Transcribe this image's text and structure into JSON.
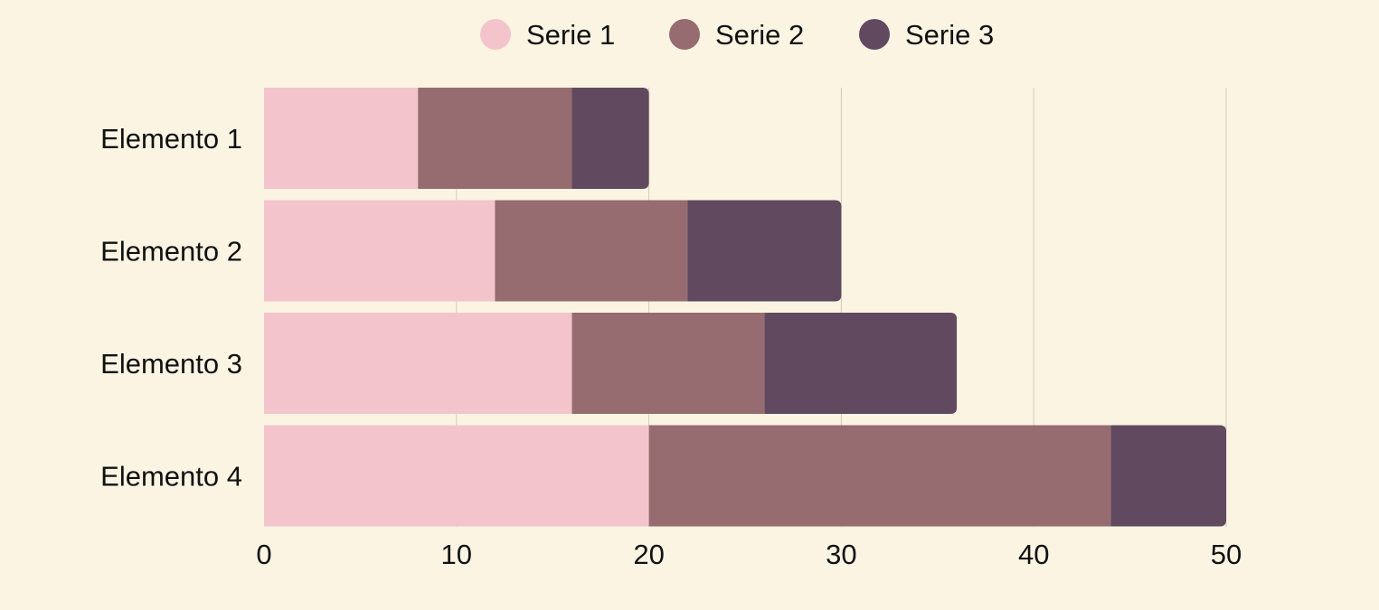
{
  "chart_data": {
    "type": "bar",
    "orientation": "horizontal",
    "stacked": true,
    "title": "",
    "xlabel": "",
    "ylabel": "",
    "categories": [
      "Elemento 1",
      "Elemento 2",
      "Elemento 3",
      "Elemento 4"
    ],
    "series": [
      {
        "name": "Serie 1",
        "color": "#f4c4cd",
        "values": [
          8,
          12,
          16,
          20
        ]
      },
      {
        "name": "Serie 2",
        "color": "#976c70",
        "values": [
          8,
          10,
          10,
          24
        ]
      },
      {
        "name": "Serie 3",
        "color": "#614a60",
        "values": [
          4,
          8,
          10,
          6
        ]
      }
    ],
    "xlim": [
      0,
      50
    ],
    "xticks": [
      0,
      10,
      20,
      30,
      40,
      50
    ],
    "grid": "vertical",
    "legend_position": "top-center"
  },
  "colors": {
    "background": "#fcf4e3",
    "grid": "#d2cbbd",
    "text": "#111111"
  }
}
